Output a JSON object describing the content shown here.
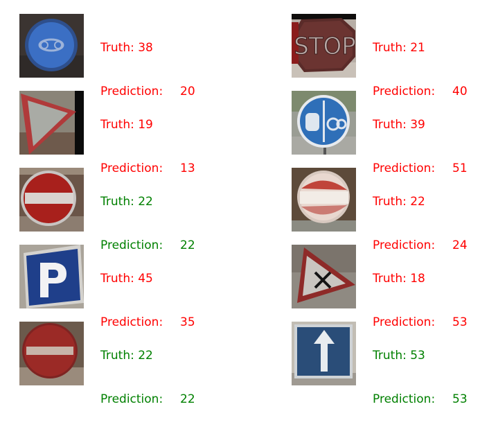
{
  "colors": {
    "incorrect": "#ff0000",
    "correct": "#008000"
  },
  "samples": [
    {
      "truth_label": "Truth: 38",
      "prediction_label": "Prediction:",
      "prediction_value": "20",
      "correct": false,
      "icon": "blue-circle-sign-icon"
    },
    {
      "truth_label": "Truth: 21",
      "prediction_label": "Prediction:",
      "prediction_value": "40",
      "correct": false,
      "icon": "stop-sign-icon"
    },
    {
      "truth_label": "Truth: 19",
      "prediction_label": "Prediction:",
      "prediction_value": "13",
      "correct": false,
      "icon": "yield-sign-icon"
    },
    {
      "truth_label": "Truth: 39",
      "prediction_label": "Prediction:",
      "prediction_value": "51",
      "correct": false,
      "icon": "pedestrian-bicycle-sign-icon"
    },
    {
      "truth_label": "Truth: 22",
      "prediction_label": "Prediction:",
      "prediction_value": "22",
      "correct": true,
      "icon": "no-entry-sign-icon"
    },
    {
      "truth_label": "Truth: 22",
      "prediction_label": "Prediction:",
      "prediction_value": "24",
      "correct": false,
      "icon": "faded-no-entry-sign-icon"
    },
    {
      "truth_label": "Truth: 45",
      "prediction_label": "Prediction:",
      "prediction_value": "35",
      "correct": false,
      "icon": "parking-sign-icon"
    },
    {
      "truth_label": "Truth: 18",
      "prediction_label": "Prediction:",
      "prediction_value": "53",
      "correct": false,
      "icon": "crossroads-warning-sign-icon"
    },
    {
      "truth_label": "Truth: 22",
      "prediction_label": "Prediction:",
      "prediction_value": "22",
      "correct": true,
      "icon": "no-entry-sign-icon"
    },
    {
      "truth_label": "Truth: 53",
      "prediction_label": "Prediction:",
      "prediction_value": "53",
      "correct": true,
      "icon": "one-way-arrow-sign-icon"
    }
  ]
}
